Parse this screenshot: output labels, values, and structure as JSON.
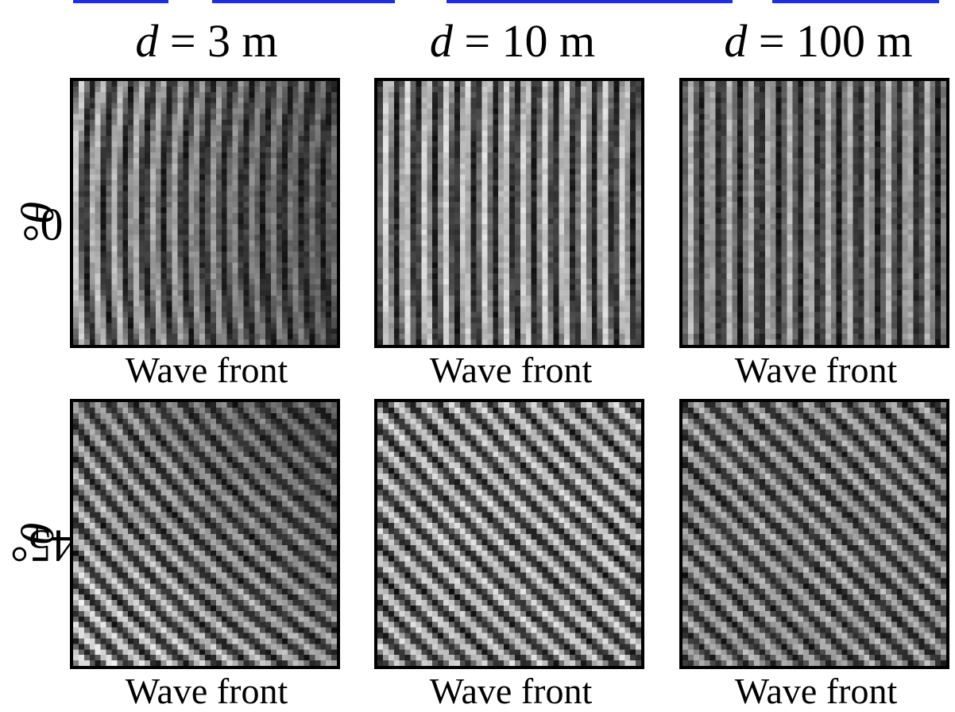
{
  "columns": [
    {
      "symbol": "d",
      "rest": " = 3 m",
      "distance_m": 3
    },
    {
      "symbol": "d",
      "rest": " = 10 m",
      "distance_m": 10
    },
    {
      "symbol": "d",
      "rest": " = 100 m",
      "distance_m": 100
    }
  ],
  "rows": [
    {
      "symbol": "θ",
      "rest": " = 0°",
      "angle_deg": 0
    },
    {
      "symbol": "θ",
      "rest": "= 45°",
      "angle_deg": 45
    }
  ],
  "caption": "Wave front",
  "colors": {
    "frame": "#000000",
    "top_rule": "#1e2fd8"
  }
}
